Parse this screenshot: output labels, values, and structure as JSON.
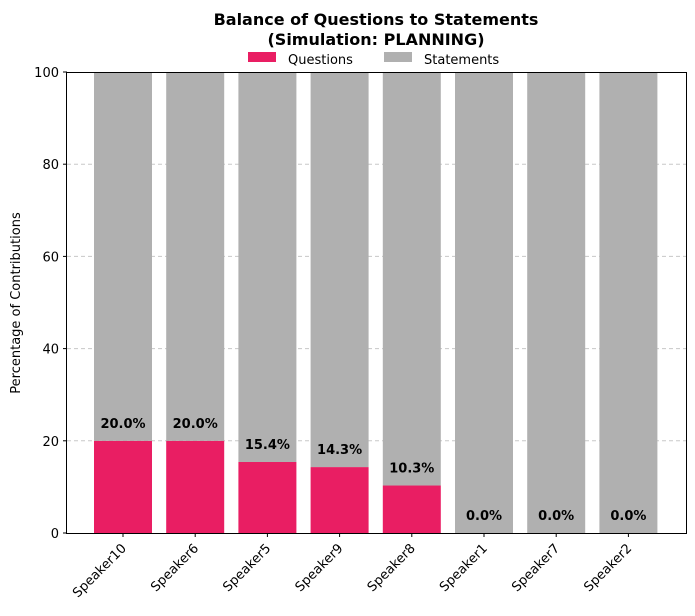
{
  "chart_data": {
    "type": "bar",
    "stacked": true,
    "title_line1": "Balance of Questions to Statements",
    "title_line2": "(Simulation: PLANNING)",
    "xlabel": "",
    "ylabel": "Percentage of Contributions",
    "ylim": [
      0,
      100
    ],
    "yticks": [
      "0",
      "20",
      "40",
      "60",
      "80",
      "100"
    ],
    "grid": "y-dashed",
    "legend_placement": "top-center",
    "categories": [
      "Speaker10",
      "Speaker6",
      "Speaker5",
      "Speaker9",
      "Speaker8",
      "Speaker1",
      "Speaker7",
      "Speaker2"
    ],
    "series": [
      {
        "name": "Questions",
        "color": "#e91e63",
        "values": [
          20.0,
          20.0,
          15.4,
          14.3,
          10.3,
          0.0,
          0.0,
          0.0
        ]
      },
      {
        "name": "Statements",
        "color": "#b0b0b0",
        "values": [
          80.0,
          80.0,
          84.6,
          85.7,
          89.7,
          100.0,
          100.0,
          100.0
        ]
      }
    ],
    "data_labels": [
      "20.0%",
      "20.0%",
      "15.4%",
      "14.3%",
      "10.3%",
      "0.0%",
      "0.0%",
      "0.0%"
    ]
  }
}
